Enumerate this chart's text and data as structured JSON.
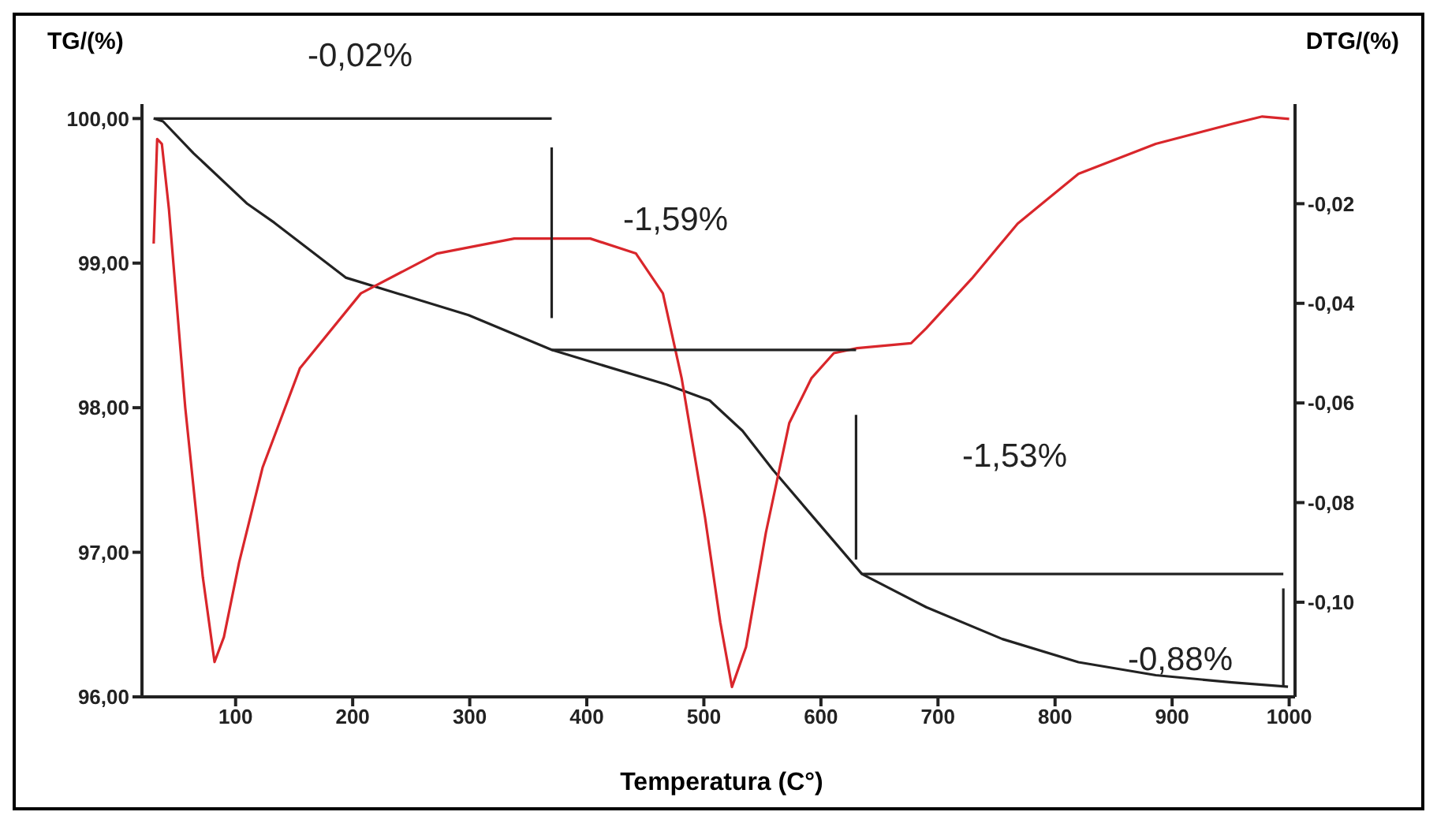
{
  "chart_data": {
    "type": "line",
    "xlabel": "Temperatura (C°)",
    "ylabel": "TG/(%)",
    "y2label": "DTG/(%)",
    "xlim": [
      20,
      1005
    ],
    "xticks": [
      100,
      200,
      300,
      400,
      500,
      600,
      700,
      800,
      900,
      1000
    ],
    "ylim": [
      96,
      100.1
    ],
    "yticks": [
      {
        "value": 96,
        "label": "96,00"
      },
      {
        "value": 97,
        "label": "97,00"
      },
      {
        "value": 98,
        "label": "98,00"
      },
      {
        "value": 99,
        "label": "99,00"
      },
      {
        "value": 100,
        "label": "100,00"
      }
    ],
    "y2lim": [
      -0.119,
      0
    ],
    "y2ticks": [
      {
        "value": -0.1,
        "label": "-0,10"
      },
      {
        "value": -0.08,
        "label": "-0,08"
      },
      {
        "value": -0.06,
        "label": "-0,06"
      },
      {
        "value": -0.04,
        "label": "-0,04"
      },
      {
        "value": -0.02,
        "label": "-0,02"
      }
    ],
    "marker": "none",
    "line_style": "solid",
    "series": [
      {
        "color": "#222222",
        "x": [
          30,
          38,
          64,
          110,
          133,
          194,
          299,
          370,
          468,
          505,
          533,
          559,
          598,
          635,
          690,
          755,
          820,
          886,
          951,
          999
        ],
        "values": [
          100,
          99.98,
          99.76,
          99.41,
          99.28,
          98.9,
          98.64,
          98.4,
          98.16,
          98.05,
          97.84,
          97.57,
          97.2,
          96.85,
          96.62,
          96.4,
          96.24,
          96.15,
          96.1,
          96.07
        ]
      },
      {
        "color": "#d9262b",
        "axis": "y2",
        "x": [
          30,
          33,
          37,
          43,
          57,
          72,
          82,
          90,
          103,
          123,
          155,
          207,
          272,
          338,
          403,
          442,
          465,
          481,
          501,
          514,
          524,
          536,
          553,
          573,
          592,
          611,
          631,
          677,
          690,
          729,
          768,
          820,
          886,
          951,
          977,
          1000
        ],
        "values": [
          -0.028,
          -0.007,
          -0.008,
          -0.021,
          -0.061,
          -0.095,
          -0.112,
          -0.107,
          -0.092,
          -0.073,
          -0.053,
          -0.038,
          -0.03,
          -0.027,
          -0.027,
          -0.03,
          -0.038,
          -0.055,
          -0.083,
          -0.104,
          -0.117,
          -0.109,
          -0.086,
          -0.064,
          -0.055,
          -0.05,
          -0.049,
          -0.048,
          -0.045,
          -0.035,
          -0.024,
          -0.014,
          -0.008,
          -0.004,
          -0.0025,
          -0.003
        ]
      },
      {
        "color": "#222222",
        "x": [
          30,
          370
        ],
        "values": [
          100,
          100
        ]
      },
      {
        "color": "#222222",
        "x": [
          370,
          370
        ],
        "values": [
          99.8,
          98.62
        ]
      },
      {
        "color": "#222222",
        "x": [
          370,
          630
        ],
        "values": [
          98.4,
          98.4
        ]
      },
      {
        "color": "#222222",
        "x": [
          630,
          630
        ],
        "values": [
          97.95,
          96.95
        ]
      },
      {
        "color": "#222222",
        "x": [
          635,
          995
        ],
        "values": [
          96.85,
          96.85
        ]
      },
      {
        "color": "#222222",
        "x": [
          995,
          995
        ],
        "values": [
          96.75,
          96.07
        ]
      }
    ],
    "annotations": [
      "-0,02%",
      "-1,59%",
      "-1,53%",
      "-0,88%"
    ]
  }
}
